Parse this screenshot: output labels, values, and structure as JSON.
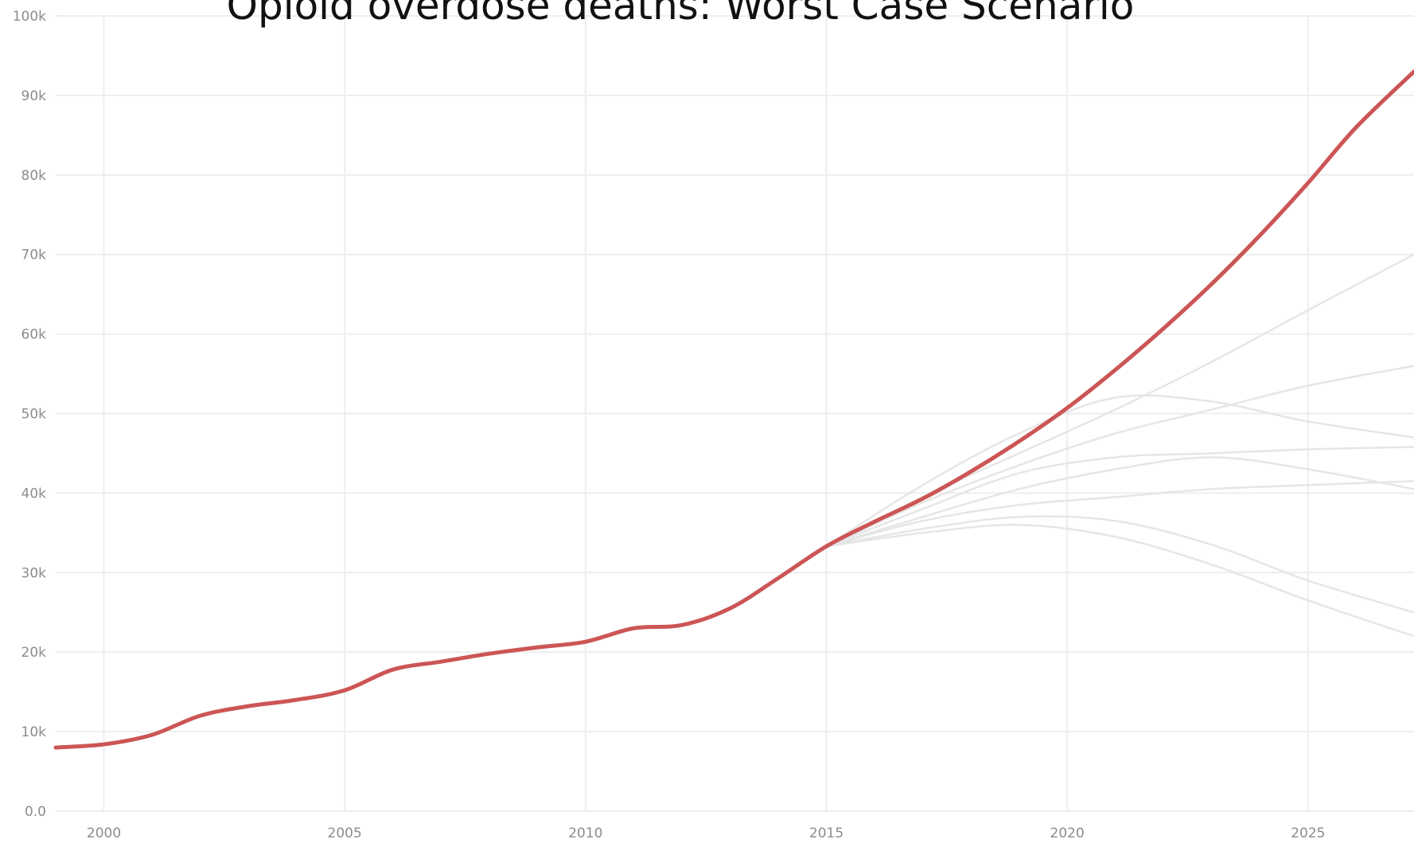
{
  "chart_data": {
    "type": "line",
    "title": "Opioid overdose deaths: Worst Case Scenario",
    "xlabel": "",
    "ylabel": "",
    "xlim": [
      1999,
      2027.2
    ],
    "ylim": [
      0,
      100000
    ],
    "grid": true,
    "legend": "none",
    "x_ticks": [
      2000,
      2005,
      2010,
      2015,
      2020,
      2025
    ],
    "x_tick_labels": [
      "2000",
      "2005",
      "2010",
      "2015",
      "2020",
      "2025"
    ],
    "y_ticks": [
      0,
      10000,
      20000,
      30000,
      40000,
      50000,
      60000,
      70000,
      80000,
      90000,
      100000
    ],
    "y_tick_labels": [
      "0.0",
      "10k",
      "20k",
      "30k",
      "40k",
      "50k",
      "60k",
      "70k",
      "80k",
      "90k",
      "100k"
    ],
    "colors": {
      "highlight": "#cc5555",
      "faded": "#e6e6e6",
      "grid": "#eeeeee",
      "tick_text": "#8c8c8c"
    },
    "highlighted_series": {
      "x": [
        1999,
        2000,
        2001,
        2002,
        2003,
        2004,
        2005,
        2006,
        2007,
        2008,
        2009,
        2010,
        2011,
        2012,
        2013,
        2014,
        2015,
        2016,
        2017,
        2018,
        2019,
        2020,
        2021,
        2022,
        2023,
        2024,
        2025,
        2026,
        2027.2
      ],
      "y": [
        8000,
        8400,
        9600,
        12000,
        13200,
        14000,
        15200,
        17800,
        18800,
        19800,
        20600,
        21300,
        23000,
        23400,
        25500,
        29300,
        33300,
        36400,
        39300,
        42700,
        46500,
        50700,
        55500,
        60700,
        66300,
        72400,
        79000,
        86000,
        93000
      ]
    },
    "faded_series": [
      {
        "x": [
          2015,
          2017,
          2019,
          2021,
          2023,
          2025,
          2027.2
        ],
        "y": [
          33300,
          39500,
          45000,
          50500,
          56500,
          63000,
          70000
        ]
      },
      {
        "x": [
          2015,
          2017,
          2019,
          2021,
          2023,
          2025,
          2027.2
        ],
        "y": [
          33300,
          38800,
          43500,
          47500,
          50500,
          53500,
          56000
        ]
      },
      {
        "x": [
          2015,
          2017,
          2019,
          2021,
          2023,
          2025,
          2027.2
        ],
        "y": [
          33300,
          41000,
          47500,
          52000,
          51500,
          49000,
          47000
        ]
      },
      {
        "x": [
          2015,
          2017,
          2019,
          2021,
          2023,
          2025,
          2027.2
        ],
        "y": [
          33300,
          38000,
          42500,
          44500,
          45000,
          45500,
          45800
        ]
      },
      {
        "x": [
          2015,
          2017,
          2019,
          2021,
          2023,
          2025,
          2027.2
        ],
        "y": [
          33300,
          37000,
          40500,
          43000,
          44500,
          43000,
          40500
        ]
      },
      {
        "x": [
          2015,
          2017,
          2019,
          2021,
          2023,
          2025,
          2027.2
        ],
        "y": [
          33300,
          36500,
          38500,
          39500,
          40500,
          41000,
          41500
        ]
      },
      {
        "x": [
          2015,
          2017,
          2019,
          2021,
          2023,
          2025,
          2027.2
        ],
        "y": [
          33300,
          35500,
          37000,
          36500,
          33500,
          29000,
          25000
        ]
      },
      {
        "x": [
          2015,
          2017,
          2019,
          2021,
          2023,
          2025,
          2027.2
        ],
        "y": [
          33300,
          35000,
          36000,
          34500,
          31000,
          26500,
          22000
        ]
      }
    ]
  }
}
